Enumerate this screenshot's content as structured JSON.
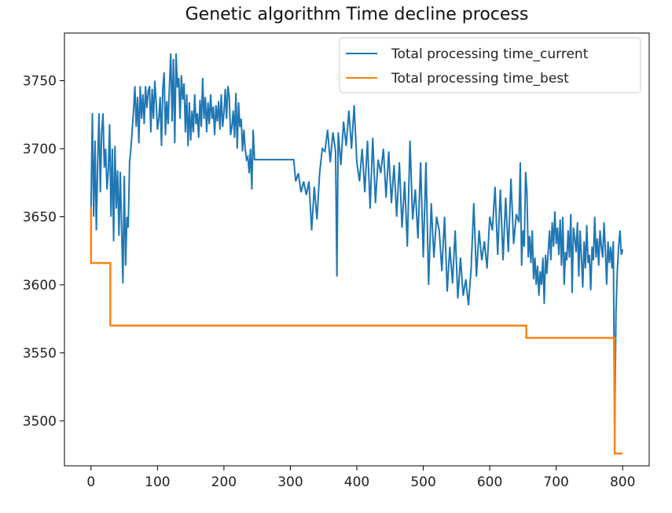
{
  "chart_data": {
    "type": "line",
    "title": "Genetic algorithm Time decline process",
    "xlabel": "",
    "ylabel": "",
    "xlim": [
      -40,
      840
    ],
    "ylim": [
      3467,
      3785
    ],
    "x_ticks": [
      0,
      100,
      200,
      300,
      400,
      500,
      600,
      700,
      800
    ],
    "y_ticks": [
      3500,
      3550,
      3600,
      3650,
      3700,
      3750
    ],
    "grid": false,
    "legend_position": "top-right",
    "series": [
      {
        "name": "Total processing time_current",
        "color": "#1f77b4",
        "points": [
          [
            0,
            3657
          ],
          [
            2,
            3726
          ],
          [
            4,
            3650
          ],
          [
            6,
            3706
          ],
          [
            8,
            3640
          ],
          [
            10,
            3690
          ],
          [
            12,
            3726
          ],
          [
            14,
            3668
          ],
          [
            16,
            3712
          ],
          [
            18,
            3726
          ],
          [
            20,
            3686
          ],
          [
            22,
            3700
          ],
          [
            24,
            3670
          ],
          [
            26,
            3684
          ],
          [
            28,
            3718
          ],
          [
            30,
            3650
          ],
          [
            32,
            3700
          ],
          [
            34,
            3632
          ],
          [
            36,
            3702
          ],
          [
            38,
            3656
          ],
          [
            40,
            3684
          ],
          [
            42,
            3636
          ],
          [
            44,
            3683
          ],
          [
            46,
            3642
          ],
          [
            48,
            3601
          ],
          [
            50,
            3680
          ],
          [
            52,
            3614
          ],
          [
            54,
            3650
          ],
          [
            56,
            3642
          ],
          [
            58,
            3690
          ],
          [
            60,
            3700
          ],
          [
            62,
            3714
          ],
          [
            64,
            3728
          ],
          [
            66,
            3746
          ],
          [
            68,
            3716
          ],
          [
            70,
            3738
          ],
          [
            72,
            3704
          ],
          [
            74,
            3746
          ],
          [
            76,
            3722
          ],
          [
            78,
            3740
          ],
          [
            80,
            3718
          ],
          [
            82,
            3746
          ],
          [
            84,
            3730
          ],
          [
            86,
            3742
          ],
          [
            88,
            3746
          ],
          [
            90,
            3712
          ],
          [
            92,
            3744
          ],
          [
            94,
            3722
          ],
          [
            96,
            3750
          ],
          [
            98,
            3734
          ],
          [
            100,
            3714
          ],
          [
            102,
            3722
          ],
          [
            104,
            3738
          ],
          [
            106,
            3702
          ],
          [
            108,
            3744
          ],
          [
            110,
            3756
          ],
          [
            112,
            3710
          ],
          [
            114,
            3735
          ],
          [
            116,
            3718
          ],
          [
            118,
            3746
          ],
          [
            120,
            3770
          ],
          [
            122,
            3720
          ],
          [
            124,
            3766
          ],
          [
            126,
            3704
          ],
          [
            128,
            3770
          ],
          [
            130,
            3745
          ],
          [
            132,
            3752
          ],
          [
            134,
            3722
          ],
          [
            136,
            3754
          ],
          [
            138,
            3736
          ],
          [
            140,
            3748
          ],
          [
            142,
            3712
          ],
          [
            144,
            3740
          ],
          [
            146,
            3702
          ],
          [
            148,
            3734
          ],
          [
            150,
            3706
          ],
          [
            152,
            3728
          ],
          [
            154,
            3712
          ],
          [
            156,
            3740
          ],
          [
            158,
            3718
          ],
          [
            160,
            3726
          ],
          [
            162,
            3708
          ],
          [
            164,
            3736
          ],
          [
            166,
            3716
          ],
          [
            168,
            3752
          ],
          [
            170,
            3722
          ],
          [
            172,
            3738
          ],
          [
            174,
            3712
          ],
          [
            176,
            3734
          ],
          [
            178,
            3718
          ],
          [
            180,
            3740
          ],
          [
            182,
            3722
          ],
          [
            184,
            3731
          ],
          [
            186,
            3710
          ],
          [
            188,
            3732
          ],
          [
            190,
            3720
          ],
          [
            192,
            3735
          ],
          [
            194,
            3714
          ],
          [
            196,
            3740
          ],
          [
            198,
            3716
          ],
          [
            200,
            3726
          ],
          [
            202,
            3744
          ],
          [
            204,
            3722
          ],
          [
            206,
            3746
          ],
          [
            208,
            3738
          ],
          [
            210,
            3710
          ],
          [
            212,
            3716
          ],
          [
            214,
            3728
          ],
          [
            216,
            3708
          ],
          [
            218,
            3741
          ],
          [
            220,
            3700
          ],
          [
            222,
            3734
          ],
          [
            224,
            3716
          ],
          [
            226,
            3722
          ],
          [
            228,
            3698
          ],
          [
            230,
            3714
          ],
          [
            232,
            3700
          ],
          [
            234,
            3692
          ],
          [
            236,
            3694
          ],
          [
            238,
            3682
          ],
          [
            240,
            3700
          ],
          [
            242,
            3670
          ],
          [
            244,
            3714
          ],
          [
            246,
            3692
          ],
          [
            250,
            3692
          ],
          [
            270,
            3692
          ],
          [
            290,
            3692
          ],
          [
            305,
            3692
          ],
          [
            308,
            3676
          ],
          [
            312,
            3682
          ],
          [
            316,
            3668
          ],
          [
            320,
            3676
          ],
          [
            324,
            3666
          ],
          [
            328,
            3676
          ],
          [
            332,
            3640
          ],
          [
            336,
            3672
          ],
          [
            340,
            3648
          ],
          [
            344,
            3682
          ],
          [
            348,
            3700
          ],
          [
            352,
            3698
          ],
          [
            356,
            3714
          ],
          [
            360,
            3690
          ],
          [
            364,
            3712
          ],
          [
            368,
            3698
          ],
          [
            370,
            3606
          ],
          [
            372,
            3712
          ],
          [
            376,
            3688
          ],
          [
            380,
            3720
          ],
          [
            384,
            3702
          ],
          [
            388,
            3728
          ],
          [
            392,
            3700
          ],
          [
            396,
            3732
          ],
          [
            400,
            3690
          ],
          [
            404,
            3676
          ],
          [
            408,
            3700
          ],
          [
            412,
            3668
          ],
          [
            416,
            3706
          ],
          [
            420,
            3656
          ],
          [
            424,
            3708
          ],
          [
            428,
            3660
          ],
          [
            432,
            3692
          ],
          [
            436,
            3682
          ],
          [
            440,
            3700
          ],
          [
            444,
            3664
          ],
          [
            448,
            3698
          ],
          [
            452,
            3660
          ],
          [
            456,
            3688
          ],
          [
            460,
            3650
          ],
          [
            464,
            3690
          ],
          [
            468,
            3642
          ],
          [
            472,
            3676
          ],
          [
            476,
            3628
          ],
          [
            480,
            3706
          ],
          [
            484,
            3648
          ],
          [
            488,
            3670
          ],
          [
            492,
            3634
          ],
          [
            496,
            3690
          ],
          [
            500,
            3620
          ],
          [
            504,
            3690
          ],
          [
            508,
            3600
          ],
          [
            512,
            3660
          ],
          [
            516,
            3620
          ],
          [
            520,
            3650
          ],
          [
            524,
            3640
          ],
          [
            528,
            3610
          ],
          [
            532,
            3650
          ],
          [
            536,
            3595
          ],
          [
            540,
            3628
          ],
          [
            544,
            3601
          ],
          [
            548,
            3640
          ],
          [
            552,
            3590
          ],
          [
            556,
            3620
          ],
          [
            560,
            3592
          ],
          [
            564,
            3604
          ],
          [
            568,
            3585
          ],
          [
            572,
            3612
          ],
          [
            576,
            3660
          ],
          [
            580,
            3606
          ],
          [
            584,
            3640
          ],
          [
            588,
            3618
          ],
          [
            592,
            3632
          ],
          [
            596,
            3612
          ],
          [
            600,
            3650
          ],
          [
            604,
            3640
          ],
          [
            608,
            3672
          ],
          [
            612,
            3622
          ],
          [
            616,
            3670
          ],
          [
            620,
            3618
          ],
          [
            624,
            3664
          ],
          [
            628,
            3624
          ],
          [
            632,
            3678
          ],
          [
            636,
            3630
          ],
          [
            640,
            3652
          ],
          [
            644,
            3646
          ],
          [
            646,
            3690
          ],
          [
            648,
            3614
          ],
          [
            650,
            3640
          ],
          [
            652,
            3628
          ],
          [
            654,
            3683
          ],
          [
            656,
            3668
          ],
          [
            658,
            3620
          ],
          [
            660,
            3636
          ],
          [
            662,
            3616
          ],
          [
            664,
            3640
          ],
          [
            666,
            3604
          ],
          [
            668,
            3620
          ],
          [
            670,
            3600
          ],
          [
            672,
            3614
          ],
          [
            674,
            3592
          ],
          [
            676,
            3610
          ],
          [
            678,
            3600
          ],
          [
            680,
            3620
          ],
          [
            682,
            3586
          ],
          [
            684,
            3622
          ],
          [
            686,
            3608
          ],
          [
            688,
            3624
          ],
          [
            690,
            3640
          ],
          [
            692,
            3618
          ],
          [
            694,
            3646
          ],
          [
            696,
            3628
          ],
          [
            698,
            3654
          ],
          [
            700,
            3630
          ],
          [
            702,
            3642
          ],
          [
            704,
            3622
          ],
          [
            706,
            3648
          ],
          [
            708,
            3614
          ],
          [
            710,
            3650
          ],
          [
            712,
            3600
          ],
          [
            714,
            3624
          ],
          [
            716,
            3618
          ],
          [
            718,
            3640
          ],
          [
            720,
            3620
          ],
          [
            722,
            3652
          ],
          [
            724,
            3594
          ],
          [
            726,
            3642
          ],
          [
            728,
            3634
          ],
          [
            730,
            3624
          ],
          [
            732,
            3646
          ],
          [
            734,
            3606
          ],
          [
            736,
            3640
          ],
          [
            738,
            3620
          ],
          [
            740,
            3598
          ],
          [
            742,
            3632
          ],
          [
            744,
            3612
          ],
          [
            746,
            3644
          ],
          [
            748,
            3616
          ],
          [
            750,
            3622
          ],
          [
            752,
            3596
          ],
          [
            754,
            3628
          ],
          [
            756,
            3618
          ],
          [
            758,
            3650
          ],
          [
            760,
            3620
          ],
          [
            762,
            3634
          ],
          [
            764,
            3614
          ],
          [
            766,
            3640
          ],
          [
            768,
            3628
          ],
          [
            770,
            3620
          ],
          [
            772,
            3646
          ],
          [
            774,
            3626
          ],
          [
            776,
            3600
          ],
          [
            778,
            3632
          ],
          [
            780,
            3616
          ],
          [
            782,
            3628
          ],
          [
            784,
            3612
          ],
          [
            786,
            3632
          ],
          [
            788,
            3490
          ],
          [
            790,
            3580
          ],
          [
            792,
            3610
          ],
          [
            794,
            3628
          ],
          [
            796,
            3640
          ],
          [
            798,
            3622
          ],
          [
            800,
            3626
          ]
        ]
      },
      {
        "name": "Total processing time_best",
        "color": "#ff7f0e",
        "points": [
          [
            0,
            3657
          ],
          [
            0,
            3616
          ],
          [
            29,
            3616
          ],
          [
            29,
            3570
          ],
          [
            655,
            3570
          ],
          [
            655,
            3561
          ],
          [
            788,
            3561
          ],
          [
            788,
            3476
          ],
          [
            800,
            3476
          ]
        ]
      }
    ]
  }
}
